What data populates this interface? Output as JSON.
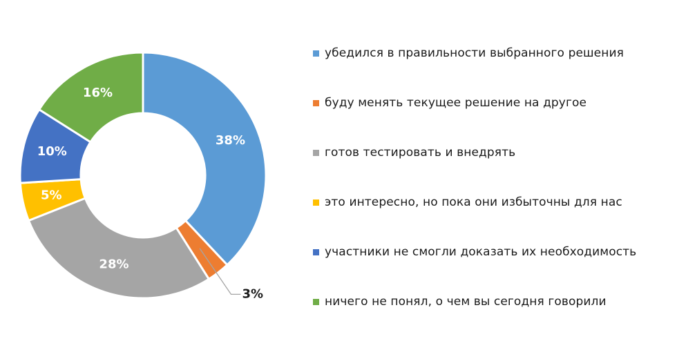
{
  "chart_data": {
    "type": "pie",
    "style": "donut",
    "title": "",
    "legend_position": "right",
    "categories": [
      "убедился в правильности выбранного решения",
      "буду менять текущее решение на другое",
      "готов тестировать и внедрять",
      "это интересно, но пока они избыточны для нас",
      "участники не смогли доказать их необходимость",
      "ничего не понял, о чем вы сегодня говорили"
    ],
    "values": [
      38,
      3,
      28,
      5,
      10,
      16
    ],
    "labels": [
      "38%",
      "3%",
      "28%",
      "5%",
      "10%",
      "16%"
    ],
    "colors": [
      "#5b9bd5",
      "#ed7d31",
      "#a5a5a5",
      "#ffc000",
      "#4472c4",
      "#70ad47"
    ]
  }
}
